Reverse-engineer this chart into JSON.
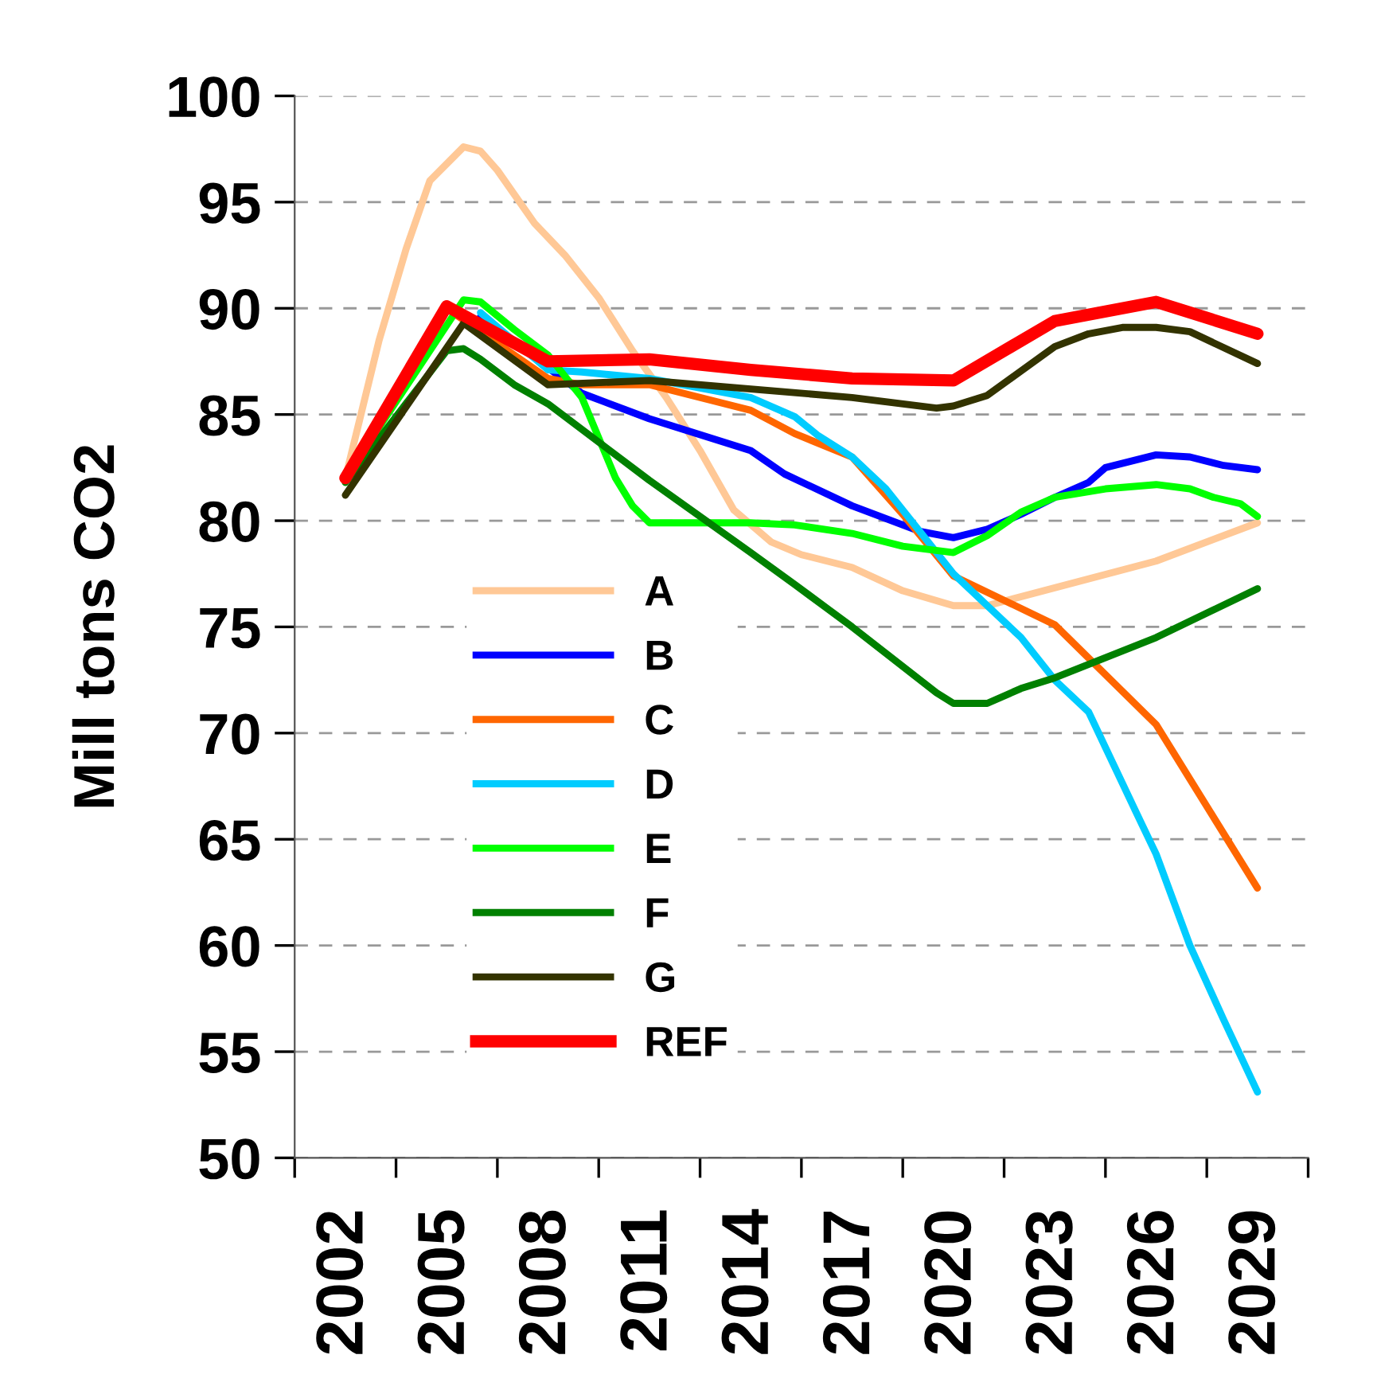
{
  "chart_data": {
    "type": "line",
    "ylabel": "Mill tons CO2",
    "xlim": [
      2000.5,
      2030.5
    ],
    "xticks": [
      {
        "value": 2000.5,
        "label": null
      },
      2002,
      {
        "value": 2003.5,
        "label": null
      },
      2005,
      {
        "value": 2006.5,
        "label": null
      },
      2008,
      {
        "value": 2009.5,
        "label": null
      },
      2011,
      {
        "value": 2012.5,
        "label": null
      },
      2014,
      {
        "value": 2015.5,
        "label": null
      },
      2017,
      {
        "value": 2018.5,
        "label": null
      },
      2020,
      {
        "value": 2021.5,
        "label": null
      },
      2023,
      {
        "value": 2024.5,
        "label": null
      },
      2026,
      {
        "value": 2027.5,
        "label": null
      },
      2029,
      {
        "value": 2030.5,
        "label": null
      }
    ],
    "ylim": [
      50,
      100
    ],
    "yticks": [
      50,
      55,
      60,
      65,
      70,
      75,
      80,
      85,
      90,
      95,
      100
    ],
    "grid": "y",
    "legend": "lower left",
    "marker": "none",
    "line_style": "solid",
    "series": [
      {
        "name": "A",
        "color": "#ffc896",
        "x": [
          2002,
          2003,
          2003.8,
          2004.5,
          2005.5,
          2006,
          2006.5,
          2007.6,
          2008.5,
          2009.5,
          2010.5,
          2011.5,
          2012.5,
          2013.5,
          2014.6,
          2015.5,
          2017,
          2018.5,
          2020,
          2021,
          2026,
          2029
        ],
        "values": [
          82,
          88.5,
          92.8,
          96,
          97.6,
          97.4,
          96.5,
          94,
          92.5,
          90.5,
          88,
          85.8,
          83.3,
          80.5,
          79,
          78.4,
          77.8,
          76.7,
          76,
          76,
          78.1,
          79.9
        ]
      },
      {
        "name": "B",
        "color": "#0000ff",
        "x": [
          2006,
          2008,
          2009,
          2011,
          2014,
          2015,
          2017,
          2019,
          2020,
          2021,
          2022,
          2023,
          2024,
          2024.5,
          2026,
          2027,
          2028,
          2029
        ],
        "values": [
          89.6,
          87.2,
          86,
          84.8,
          83.3,
          82.2,
          80.7,
          79.5,
          79.2,
          79.6,
          80.3,
          81.1,
          81.8,
          82.5,
          83.1,
          83,
          82.6,
          82.4
        ]
      },
      {
        "name": "C",
        "color": "#ff6600",
        "x": [
          2002,
          2005,
          2008,
          2009,
          2011,
          2014,
          2015.3,
          2017,
          2018.5,
          2020,
          2023,
          2026,
          2029
        ],
        "values": [
          82,
          90,
          86.7,
          86.4,
          86.4,
          85.2,
          84.1,
          83,
          80.3,
          77.4,
          75.1,
          70.4,
          62.7
        ]
      },
      {
        "name": "D",
        "color": "#00ccff",
        "x": [
          2006,
          2008,
          2009,
          2011,
          2014,
          2015.3,
          2016,
          2017,
          2018,
          2019,
          2020,
          2021,
          2022,
          2023,
          2024,
          2025.4,
          2026,
          2027,
          2028,
          2029
        ],
        "values": [
          89.8,
          87.1,
          87,
          86.7,
          85.8,
          84.9,
          84,
          83,
          81.5,
          79.5,
          77.5,
          76,
          74.5,
          72.5,
          71,
          66.3,
          64.3,
          60,
          56.5,
          53.1
        ]
      },
      {
        "name": "E",
        "color": "#00ff00",
        "x": [
          2002,
          2005.5,
          2006,
          2007,
          2008,
          2009,
          2010,
          2010.5,
          2011,
          2014,
          2015.3,
          2017,
          2018.5,
          2020,
          2021,
          2022,
          2023,
          2024.5,
          2026,
          2027,
          2027.7,
          2028.5,
          2029
        ],
        "values": [
          82,
          90.4,
          90.3,
          89,
          87.8,
          85.8,
          82,
          80.7,
          79.9,
          79.9,
          79.8,
          79.4,
          78.8,
          78.5,
          79.3,
          80.4,
          81.1,
          81.5,
          81.7,
          81.5,
          81.1,
          80.8,
          80.2
        ]
      },
      {
        "name": "F",
        "color": "#008000",
        "x": [
          2002,
          2005,
          2005.5,
          2006,
          2007,
          2008,
          2011,
          2014,
          2015.3,
          2017,
          2019.5,
          2020,
          2021,
          2022,
          2023,
          2026,
          2029
        ],
        "values": [
          81.8,
          88,
          88.1,
          87.6,
          86.4,
          85.5,
          81.9,
          78.5,
          77,
          75,
          71.9,
          71.4,
          71.4,
          72.1,
          72.6,
          74.5,
          76.8
        ]
      },
      {
        "name": "G",
        "color": "#333300",
        "x": [
          2002,
          2005.5,
          2008,
          2011,
          2014,
          2017,
          2019.5,
          2020,
          2021,
          2023,
          2024,
          2025,
          2026,
          2027,
          2029
        ],
        "values": [
          81.2,
          89.3,
          86.4,
          86.6,
          86.2,
          85.8,
          85.3,
          85.4,
          85.9,
          88.2,
          88.8,
          89.1,
          89.1,
          88.9,
          87.4
        ]
      },
      {
        "name": "REF",
        "color": "#ff0000",
        "x": [
          2002,
          2005,
          2008,
          2011,
          2014,
          2017,
          2020,
          2023,
          2026,
          2029
        ],
        "values": [
          82,
          90.1,
          87.5,
          87.6,
          87.1,
          86.7,
          86.6,
          89.4,
          90.3,
          88.8
        ]
      }
    ]
  }
}
